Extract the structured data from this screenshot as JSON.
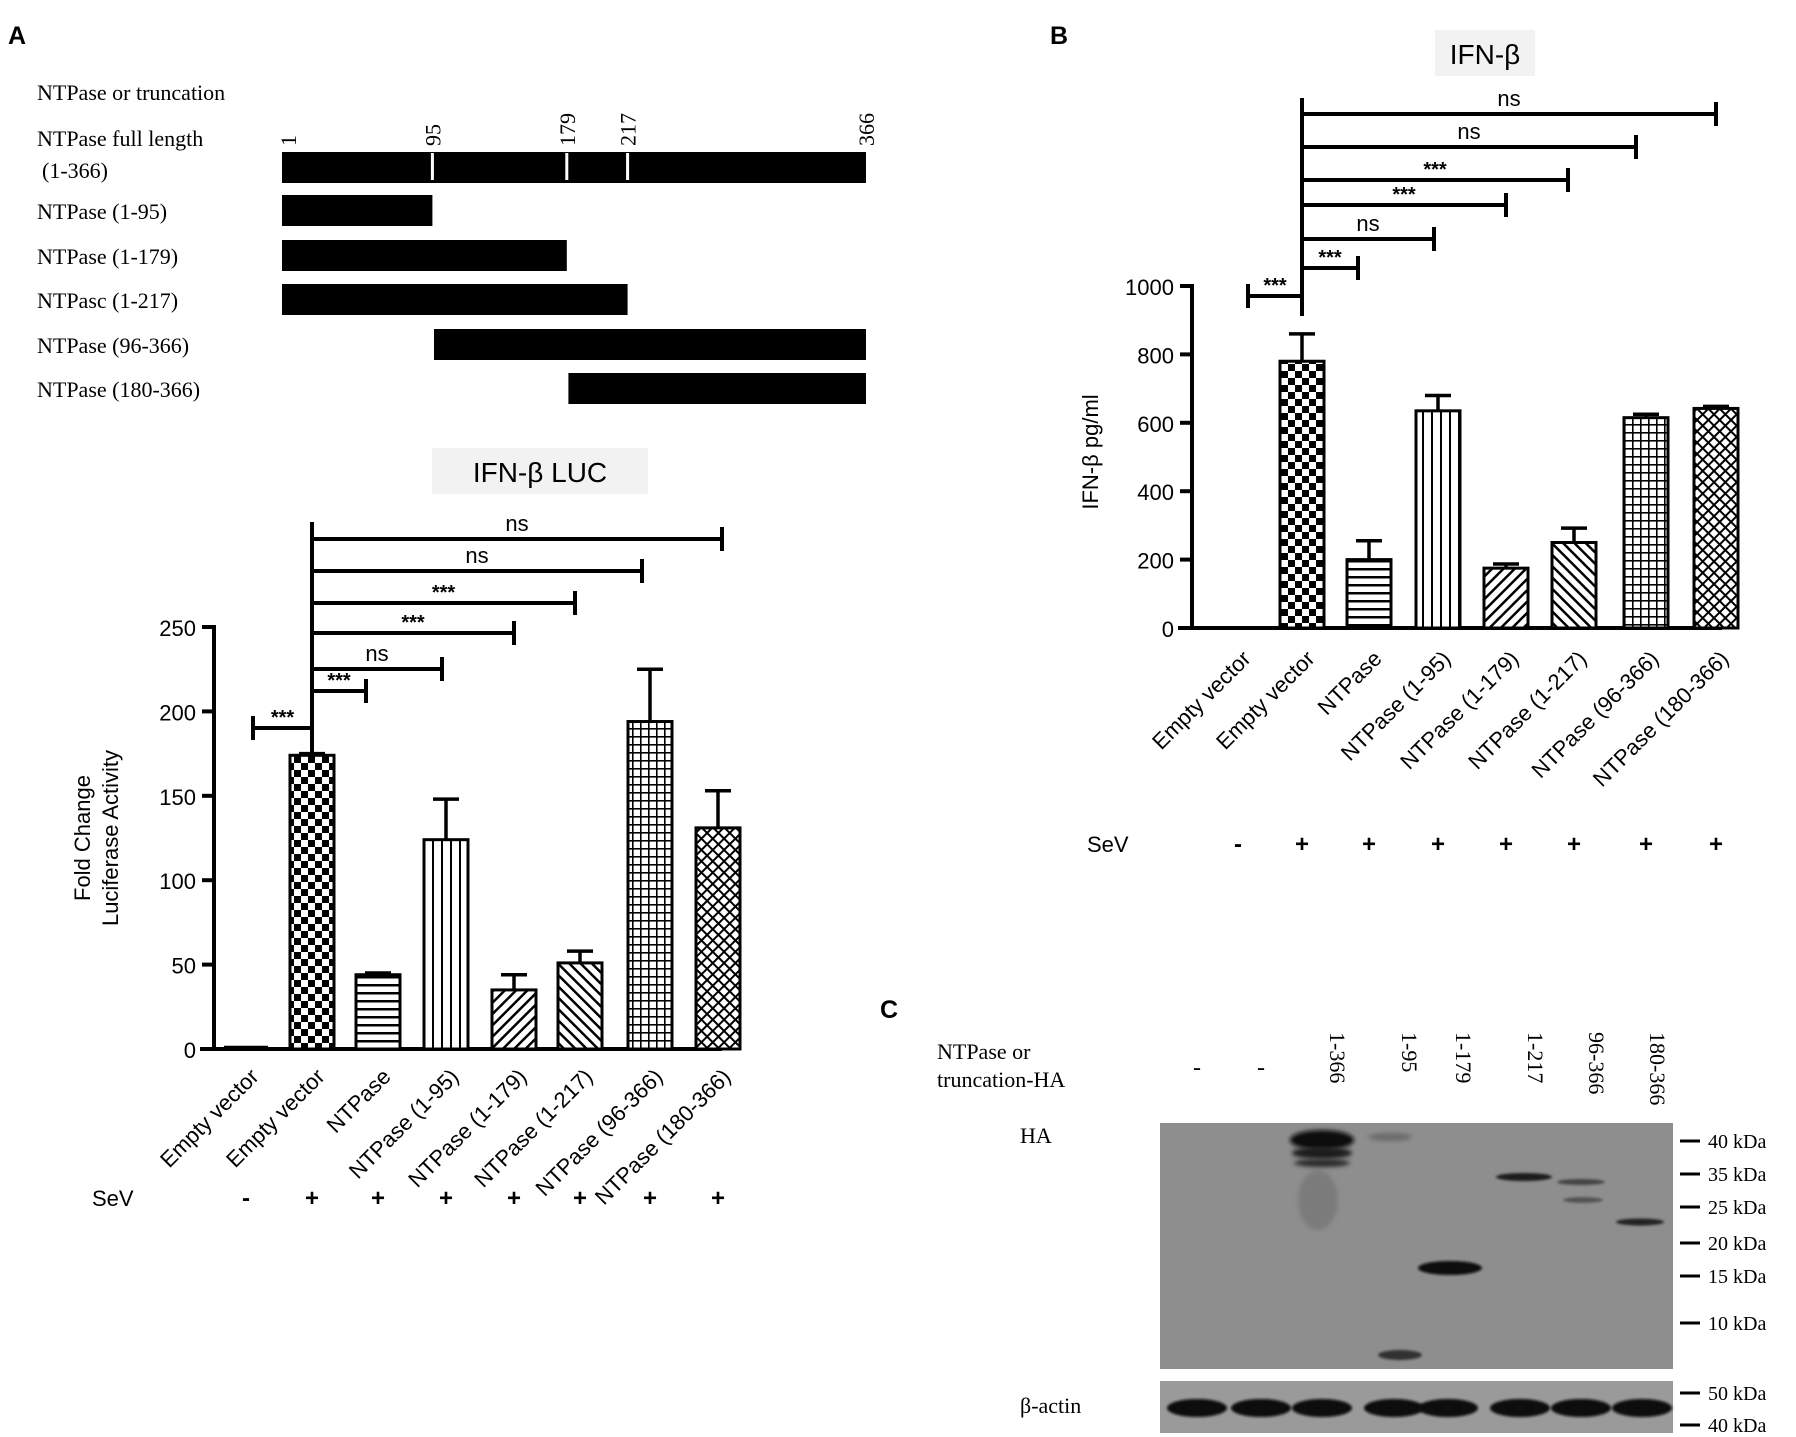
{
  "panels": {
    "a": "A",
    "b": "B",
    "c": "C"
  },
  "domain_map": {
    "header": "NTPase or truncation",
    "rows": [
      {
        "label": "NTPase full length",
        "sublabel": "(1-366)",
        "start": 1,
        "end": 366
      },
      {
        "label": "NTPase  (1-95)",
        "start": 1,
        "end": 95
      },
      {
        "label": "NTPase  (1-179)",
        "start": 1,
        "end": 179
      },
      {
        "label": "NTPasc  (1-217)",
        "start": 1,
        "end": 217
      },
      {
        "label": "NTPase  (96-366)",
        "start": 96,
        "end": 366
      },
      {
        "label": "NTPase  (180-366)",
        "start": 180,
        "end": 366
      }
    ],
    "markers": [
      "1",
      "95",
      "179",
      "217",
      "366"
    ],
    "marker_positions": [
      1,
      95,
      179,
      217,
      366
    ]
  },
  "chart_data": [
    {
      "type": "bar",
      "title": "IFN-β  LUC",
      "ylabel": [
        "Fold Change",
        "Luciferase Activity"
      ],
      "xlabel": "",
      "ylim": [
        0,
        250
      ],
      "yticks": [
        "0",
        "50",
        "100",
        "150",
        "200",
        "250"
      ],
      "ytick_values": [
        0,
        50,
        100,
        150,
        200,
        250
      ],
      "categories": [
        "Empty vector",
        "Empty vector",
        "NTPase",
        "NTPase (1-95)",
        "NTPase (1-179)",
        "NTPase (1-217)",
        "NTPase (96-366)",
        "NTPase (180-366)"
      ],
      "values": [
        1,
        174,
        44,
        124,
        35,
        51,
        194,
        131
      ],
      "errors": [
        0,
        1,
        1,
        24,
        9,
        7,
        31,
        22
      ],
      "patterns": [
        "none",
        "checker",
        "hlines",
        "vlines",
        "diag",
        "diag2",
        "grid",
        "crosshatch"
      ],
      "sev_label": "SeV",
      "sev": [
        "-",
        "+",
        "+",
        "+",
        "+",
        "+",
        "+",
        "+"
      ],
      "comparisons": [
        {
          "from": 0,
          "to": 1,
          "label": "***"
        },
        {
          "from": 1,
          "to": 2,
          "label": "***"
        },
        {
          "from": 1,
          "to": 3,
          "label": "ns"
        },
        {
          "from": 1,
          "to": 4,
          "label": "***"
        },
        {
          "from": 1,
          "to": 5,
          "label": "***"
        },
        {
          "from": 1,
          "to": 6,
          "label": "ns"
        },
        {
          "from": 1,
          "to": 7,
          "label": "ns"
        }
      ]
    },
    {
      "type": "bar",
      "title": "IFN-β",
      "ylabel": [
        "IFN-β pg/ml"
      ],
      "xlabel": "",
      "ylim": [
        0,
        1000
      ],
      "yticks": [
        "0",
        "200",
        "400",
        "600",
        "800",
        "1000"
      ],
      "ytick_values": [
        0,
        200,
        400,
        600,
        800,
        1000
      ],
      "categories": [
        "Empty vector",
        "Empty vector",
        "NTPase",
        "NTPase (1-95)",
        "NTPase (1-179)",
        "NTPase (1-217)",
        "NTPase (96-366)",
        "NTPase (180-366)"
      ],
      "values": [
        0,
        780,
        200,
        635,
        175,
        250,
        615,
        642
      ],
      "errors": [
        0,
        80,
        55,
        45,
        12,
        42,
        10,
        6
      ],
      "patterns": [
        "none",
        "checker",
        "hlines",
        "vlines",
        "diag",
        "diag2",
        "grid",
        "crosshatch"
      ],
      "sev_label": "SeV",
      "sev": [
        "-",
        "+",
        "+",
        "+",
        "+",
        "+",
        "+",
        "+"
      ],
      "comparisons": [
        {
          "from": 0,
          "to": 1,
          "label": "***"
        },
        {
          "from": 1,
          "to": 2,
          "label": "***"
        },
        {
          "from": 1,
          "to": 3,
          "label": "ns"
        },
        {
          "from": 1,
          "to": 4,
          "label": "***"
        },
        {
          "from": 1,
          "to": 5,
          "label": "***"
        },
        {
          "from": 1,
          "to": 6,
          "label": "ns"
        },
        {
          "from": 1,
          "to": 7,
          "label": "ns"
        }
      ]
    }
  ],
  "blot": {
    "header": [
      "NTPase or",
      "truncation-HA"
    ],
    "lanes": [
      "-",
      "-",
      "1-366",
      "1-95",
      "1-179",
      "1-217",
      "96-366",
      "180-366"
    ],
    "ha_label": "HA",
    "actin_label": "β-actin",
    "markers": [
      "40 kDa",
      "35 kDa",
      "25 kDa",
      "20 kDa",
      "15 kDa",
      "10 kDa"
    ],
    "actin_markers": [
      "50 kDa",
      "40 kDa"
    ]
  }
}
